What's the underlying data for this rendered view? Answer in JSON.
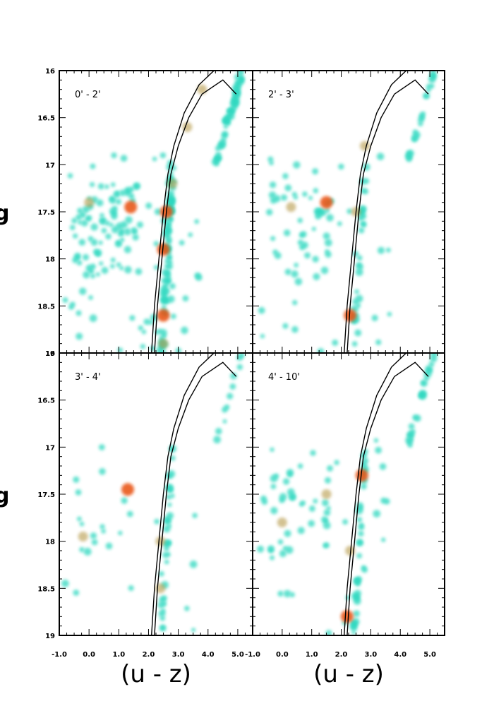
{
  "figure": {
    "xlabel": "(u - z)",
    "ylabel_visible_fragment": "g",
    "colors": {
      "density_low": "#2fd8c0",
      "density_high": "#e8500f",
      "frame": "#000000",
      "isochrone": "#000000"
    }
  },
  "chart_data": [
    {
      "type": "scatter",
      "panel": "0' - 2'",
      "xlim": [
        -1.0,
        5.5
      ],
      "ylim": [
        19,
        16
      ],
      "x_ticks": [
        "-1.0",
        "0.0",
        "1.0",
        "2.0",
        "3.0",
        "4.0",
        "5.0"
      ],
      "y_ticks": [
        "16",
        "16.5",
        "17",
        "17.5",
        "18",
        "18.5",
        "19"
      ],
      "x_ticks_shown": false,
      "y_ticks_shown": true,
      "density": "high",
      "clusters": [
        {
          "x": 1.4,
          "y": 17.45,
          "level": "high"
        },
        {
          "x": 2.6,
          "y": 17.5,
          "level": "high"
        },
        {
          "x": 2.5,
          "y": 17.9,
          "level": "high"
        },
        {
          "x": 2.5,
          "y": 18.6,
          "level": "high"
        },
        {
          "x": 2.8,
          "y": 17.2,
          "level": "mid"
        },
        {
          "x": 3.3,
          "y": 16.6,
          "level": "mid"
        },
        {
          "x": 3.8,
          "y": 16.2,
          "level": "mid"
        },
        {
          "x": 0.0,
          "y": 17.4,
          "level": "low"
        },
        {
          "x": 2.5,
          "y": 18.9,
          "level": "mid"
        }
      ]
    },
    {
      "type": "scatter",
      "panel": "2' - 3'",
      "xlim": [
        -1.0,
        5.5
      ],
      "ylim": [
        19,
        16
      ],
      "x_ticks_shown": false,
      "y_ticks_shown": false,
      "density": "medium",
      "clusters": [
        {
          "x": 1.5,
          "y": 17.4,
          "level": "high"
        },
        {
          "x": 2.5,
          "y": 17.5,
          "level": "mid"
        },
        {
          "x": 2.3,
          "y": 18.6,
          "level": "high"
        },
        {
          "x": 0.3,
          "y": 17.45,
          "level": "low"
        },
        {
          "x": 2.8,
          "y": 16.8,
          "level": "low"
        }
      ]
    },
    {
      "type": "scatter",
      "panel": "3' - 4'",
      "xlim": [
        -1.0,
        5.5
      ],
      "ylim": [
        19,
        16
      ],
      "x_ticks": [
        "-1.0",
        "0.0",
        "1.0",
        "2.0",
        "3.0",
        "4.0",
        "5.0"
      ],
      "y_ticks": [
        "16",
        "16.5",
        "17",
        "17.5",
        "18",
        "18.5",
        "19"
      ],
      "x_ticks_shown": true,
      "y_ticks_shown": true,
      "density": "low",
      "clusters": [
        {
          "x": 1.3,
          "y": 17.45,
          "level": "high"
        },
        {
          "x": 2.4,
          "y": 18.0,
          "level": "mid"
        },
        {
          "x": 2.4,
          "y": 18.5,
          "level": "mid"
        },
        {
          "x": -0.2,
          "y": 17.95,
          "level": "low"
        }
      ]
    },
    {
      "type": "scatter",
      "panel": "4' - 10'",
      "xlim": [
        -1.0,
        5.5
      ],
      "ylim": [
        19,
        16
      ],
      "x_ticks": [
        "-1.0",
        "0.0",
        "1.0",
        "2.0",
        "3.0",
        "4.0",
        "5.0"
      ],
      "x_ticks_shown": true,
      "y_ticks_shown": false,
      "density": "medium",
      "clusters": [
        {
          "x": 1.5,
          "y": 17.5,
          "level": "mid"
        },
        {
          "x": 2.7,
          "y": 17.3,
          "level": "high"
        },
        {
          "x": 2.3,
          "y": 18.1,
          "level": "mid"
        },
        {
          "x": 2.2,
          "y": 18.8,
          "level": "high"
        },
        {
          "x": 0.0,
          "y": 17.8,
          "level": "low"
        }
      ]
    }
  ]
}
